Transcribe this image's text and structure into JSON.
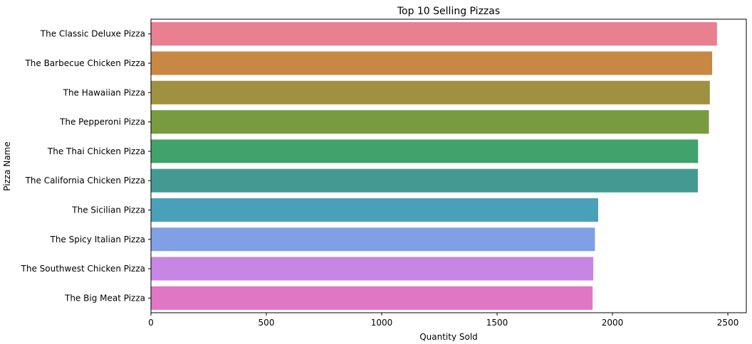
{
  "chart_data": {
    "type": "bar",
    "orientation": "horizontal",
    "title": "Top 10 Selling Pizzas",
    "xlabel": "Quantity Sold",
    "ylabel": "Pizza Name",
    "xlim": [
      0,
      2580
    ],
    "xticks": [
      0,
      500,
      1000,
      1500,
      2000,
      2500
    ],
    "grid": false,
    "categories": [
      "The Classic Deluxe Pizza",
      "The Barbecue Chicken Pizza",
      "The Hawaiian Pizza",
      "The Pepperoni Pizza",
      "The Thai Chicken Pizza",
      "The California Chicken Pizza",
      "The Sicilian Pizza",
      "The Spicy Italian Pizza",
      "The Southwest Chicken Pizza",
      "The Big Meat Pizza"
    ],
    "values": [
      2453,
      2432,
      2422,
      2418,
      2371,
      2370,
      1938,
      1924,
      1917,
      1914
    ],
    "colors": [
      "#e8808f",
      "#c88743",
      "#9f9140",
      "#789b3f",
      "#41a26b",
      "#449a93",
      "#48a0b9",
      "#7fa0e4",
      "#c786e3",
      "#e176c5"
    ]
  }
}
